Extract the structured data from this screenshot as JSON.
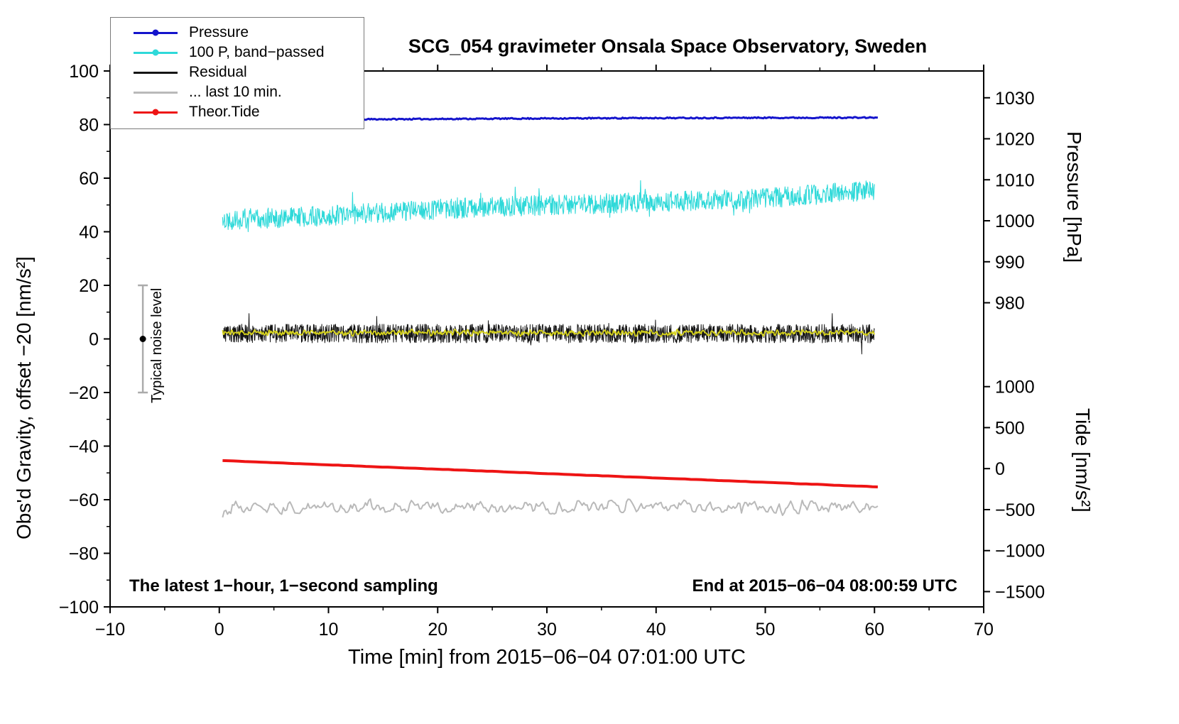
{
  "title": "SCG_054 gravimeter Onsala Space Observatory, Sweden",
  "annotations": {
    "sampling": "The latest 1−hour, 1−second sampling",
    "end_time": "End at 2015−06−04 08:00:59 UTC",
    "noise_label": "Typical noise level"
  },
  "legend": {
    "items": [
      {
        "label": "Pressure",
        "color": "#1414cc",
        "marker": true
      },
      {
        "label": "100 P, band−passed",
        "color": "#2fd9d9",
        "marker": true
      },
      {
        "label": "Residual",
        "color": "#151515",
        "marker": false
      },
      {
        "label": "... last 10 min.",
        "color": "#b9b9b9",
        "marker": false
      },
      {
        "label": "Theor.Tide",
        "color": "#ee1414",
        "marker": true
      }
    ]
  },
  "chart_data": {
    "type": "line",
    "title": "SCG_054 gravimeter Onsala Space Observatory, Sweden",
    "xlabel": "Time [min] from 2015−06−04 07:01:00 UTC",
    "axes": {
      "bottom": {
        "label": "Time [min] from 2015−06−04 07:01:00 UTC",
        "min": -10,
        "max": 70,
        "tick_step": 10,
        "minor_step": 5
      },
      "left": {
        "label": "Obs'd Gravity, offset −20 [nm/s²]",
        "min": -100,
        "max": 100,
        "tick_step": 20,
        "minor_step": 10
      },
      "right_pressure": {
        "label": "Pressure [hPa]",
        "ticks": [
          [
            1030,
            90.0
          ],
          [
            1020,
            74.7
          ],
          [
            1010,
            59.4
          ],
          [
            1000,
            44.1
          ],
          [
            990,
            28.8
          ],
          [
            980,
            13.5
          ]
        ]
      },
      "right_tide": {
        "label": "Tide [nm/s²]",
        "ticks": [
          [
            1000,
            -17.8
          ],
          [
            500,
            -33.1
          ],
          [
            0,
            -48.4
          ],
          [
            -500,
            -63.7
          ],
          [
            -1000,
            -79.0
          ],
          [
            -1500,
            -94.3
          ]
        ]
      }
    },
    "noise_marker": {
      "x": -7,
      "y_center": 0,
      "half_height": 20,
      "color": "#ababab",
      "dot_color": "#000000"
    },
    "series": [
      {
        "name": "pressure",
        "legend": "Pressure",
        "color": "#1414cc",
        "width": 3,
        "x_start": 0.2,
        "x_end": 60.3,
        "baseline": [
          81.7,
          81.9,
          82.1,
          82.3,
          82.45,
          82.55,
          82.6
        ],
        "amplitude": 0.22,
        "points": 500,
        "seed": 11
      },
      {
        "name": "band-passed-pressure",
        "legend": "100 P, band−passed",
        "color": "#2fd9d9",
        "width": 1.1,
        "x_start": 0.3,
        "x_end": 60,
        "baseline": [
          44.5,
          46,
          48.5,
          50,
          51,
          52.5,
          55.5
        ],
        "amplitude": 3.8,
        "spike_chance": 0.015,
        "spike_scale": 2.3,
        "points": 1400,
        "seed": 22
      },
      {
        "name": "residual",
        "legend": "Residual",
        "color": "#151515",
        "width": 1,
        "x_start": 0.3,
        "x_end": 60,
        "baseline": [
          2,
          2,
          2,
          2,
          2,
          2,
          2
        ],
        "amplitude": 3.5,
        "spike_chance": 0.01,
        "spike_scale": 2.2,
        "points": 1900,
        "seed": 33
      },
      {
        "name": "residual-smoothed",
        "legend": "",
        "color": "#d6d31c",
        "width": 1.8,
        "x_start": 0.3,
        "x_end": 60,
        "baseline": [
          2.3,
          2.3,
          2.3,
          2.3,
          2.3,
          2.3,
          2.3
        ],
        "amplitude": 1.5,
        "points": 900,
        "seed": 44,
        "smooth": 1
      },
      {
        "name": "theor-tide",
        "legend": "Theor.Tide",
        "color": "#ee1414",
        "width": 4,
        "x_start": 0.3,
        "x_end": 60.3,
        "baseline": [
          -45.4,
          -55.2
        ],
        "amplitude": 0.05,
        "points": 120,
        "seed": 55
      },
      {
        "name": "residual-last-10min",
        "legend": "... last 10 min.",
        "color": "#b9b9b9",
        "width": 2,
        "x_start": 0.3,
        "x_end": 60.3,
        "baseline": [
          -62.5,
          -62.5,
          -62.5,
          -62.5,
          -62.5,
          -62.5,
          -62.5
        ],
        "amplitude": 3.2,
        "spike_chance": 0.03,
        "spike_scale": 1.8,
        "points": 400,
        "seed": 66,
        "smooth": 1
      }
    ]
  }
}
